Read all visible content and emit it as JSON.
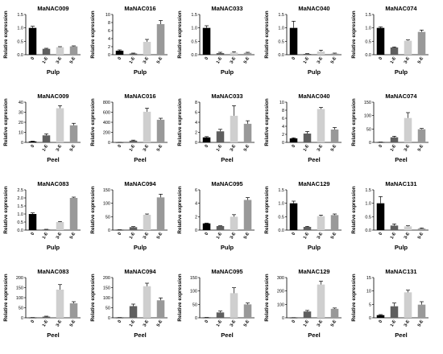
{
  "chart_data": [
    {
      "type": "bar",
      "title": "MaNAC009",
      "xlabel": "Pulp",
      "ylabel": "Relative expression",
      "categories": [
        "0",
        "1-E",
        "3-E",
        "5-E"
      ],
      "values": [
        1.0,
        0.22,
        0.28,
        0.31
      ],
      "errors": [
        0.06,
        0.02,
        0.02,
        0.02
      ],
      "ylim": [
        0,
        1.5
      ],
      "yticks": [
        "0.0",
        "0.5",
        "1.0",
        "1.5"
      ],
      "colors": [
        "#000000",
        "#5f5f5f",
        "#cfcfcf",
        "#999999"
      ]
    },
    {
      "type": "bar",
      "title": "MaNAC016",
      "xlabel": "Pulp",
      "ylabel": "Relative expression",
      "categories": [
        "0",
        "1-E",
        "3-E",
        "5-E"
      ],
      "values": [
        1.0,
        0.3,
        3.2,
        7.6
      ],
      "errors": [
        0.2,
        0.1,
        0.6,
        0.9
      ],
      "ylim": [
        0,
        10
      ],
      "yticks": [
        "0",
        "2",
        "4",
        "6",
        "8",
        "10"
      ],
      "colors": [
        "#000000",
        "#5f5f5f",
        "#cfcfcf",
        "#999999"
      ]
    },
    {
      "type": "bar",
      "title": "MaNAC033",
      "xlabel": "Pulp",
      "ylabel": "Relative expression",
      "categories": [
        "0",
        "1-E",
        "3-E",
        "5-E"
      ],
      "values": [
        1.0,
        0.06,
        0.08,
        0.07
      ],
      "errors": [
        0.08,
        0.03,
        0.03,
        0.02
      ],
      "ylim": [
        0,
        1.5
      ],
      "yticks": [
        "0.0",
        "0.5",
        "1.0",
        "1.5"
      ],
      "colors": [
        "#000000",
        "#5f5f5f",
        "#cfcfcf",
        "#999999"
      ]
    },
    {
      "type": "bar",
      "title": "MaNAC040",
      "xlabel": "Pulp",
      "ylabel": "Relative expression",
      "categories": [
        "0",
        "1-E",
        "3-E",
        "5-E"
      ],
      "values": [
        1.0,
        0.03,
        0.12,
        0.04
      ],
      "errors": [
        0.25,
        0.01,
        0.05,
        0.02
      ],
      "ylim": [
        0,
        1.5
      ],
      "yticks": [
        "0.0",
        "0.5",
        "1.0",
        "1.5"
      ],
      "colors": [
        "#000000",
        "#5f5f5f",
        "#cfcfcf",
        "#999999"
      ]
    },
    {
      "type": "bar",
      "title": "MaNAC074",
      "xlabel": "Pulp",
      "ylabel": "Relative expression",
      "categories": [
        "0",
        "1-E",
        "3-E",
        "5-E"
      ],
      "values": [
        1.0,
        0.27,
        0.52,
        0.85
      ],
      "errors": [
        0.04,
        0.02,
        0.03,
        0.07
      ],
      "ylim": [
        0,
        1.5
      ],
      "yticks": [
        "0.0",
        "0.5",
        "1.0",
        "1.5"
      ],
      "colors": [
        "#000000",
        "#5f5f5f",
        "#cfcfcf",
        "#999999"
      ]
    },
    {
      "type": "bar",
      "title": "MaNAC009",
      "xlabel": "Peel",
      "ylabel": "Relative expression",
      "categories": [
        "0",
        "1-E",
        "3-E",
        "5-E"
      ],
      "values": [
        1.0,
        7.0,
        34.0,
        17.0
      ],
      "errors": [
        0.3,
        1.5,
        2.5,
        2.0
      ],
      "ylim": [
        0,
        40
      ],
      "yticks": [
        "0",
        "10",
        "20",
        "30",
        "40"
      ],
      "colors": [
        "#000000",
        "#5f5f5f",
        "#cfcfcf",
        "#999999"
      ]
    },
    {
      "type": "bar",
      "title": "MaNAC016",
      "xlabel": "Peel",
      "ylabel": "Relative expression",
      "categories": [
        "0",
        "1-E",
        "3-E",
        "5-E"
      ],
      "values": [
        1.0,
        35.0,
        610.0,
        450.0
      ],
      "errors": [
        0.3,
        10,
        70,
        30
      ],
      "ylim": [
        0,
        800
      ],
      "yticks": [
        "0",
        "200",
        "400",
        "600",
        "800"
      ],
      "colors": [
        "#000000",
        "#5f5f5f",
        "#cfcfcf",
        "#999999"
      ]
    },
    {
      "type": "bar",
      "title": "MaNAC033",
      "xlabel": "Peel",
      "ylabel": "Relative expression",
      "categories": [
        "0",
        "1-E",
        "3-E",
        "5-E"
      ],
      "values": [
        1.0,
        2.2,
        5.3,
        3.7
      ],
      "errors": [
        0.15,
        0.4,
        2.0,
        0.6
      ],
      "ylim": [
        0,
        8
      ],
      "yticks": [
        "0",
        "2",
        "4",
        "6",
        "8"
      ],
      "colors": [
        "#000000",
        "#5f5f5f",
        "#cfcfcf",
        "#999999"
      ]
    },
    {
      "type": "bar",
      "title": "MaNAC040",
      "xlabel": "Peel",
      "ylabel": "Relative expression",
      "categories": [
        "0",
        "1-E",
        "3-E",
        "5-E"
      ],
      "values": [
        1.0,
        2.2,
        8.3,
        3.2
      ],
      "errors": [
        0.15,
        0.5,
        0.4,
        0.5
      ],
      "ylim": [
        0,
        10
      ],
      "yticks": [
        "0",
        "2",
        "4",
        "6",
        "8",
        "10"
      ],
      "colors": [
        "#000000",
        "#5f5f5f",
        "#cfcfcf",
        "#999999"
      ]
    },
    {
      "type": "bar",
      "title": "MaNAC074",
      "xlabel": "Peel",
      "ylabel": "Relative expression",
      "categories": [
        "0",
        "1-E",
        "3-E",
        "5-E"
      ],
      "values": [
        1.0,
        19.0,
        91.0,
        49.0
      ],
      "errors": [
        0.3,
        4,
        20,
        3
      ],
      "ylim": [
        0,
        150
      ],
      "yticks": [
        "0",
        "50",
        "100",
        "150"
      ],
      "colors": [
        "#000000",
        "#5f5f5f",
        "#cfcfcf",
        "#999999"
      ]
    },
    {
      "type": "bar",
      "title": "MaNAC083",
      "xlabel": "Pulp",
      "ylabel": "Relative expression",
      "categories": [
        "0",
        "1-E",
        "3-E",
        "5-E"
      ],
      "values": [
        1.0,
        0.04,
        0.5,
        2.0
      ],
      "errors": [
        0.07,
        0.01,
        0.03,
        0.05
      ],
      "ylim": [
        0,
        2.5
      ],
      "yticks": [
        "0.0",
        "0.5",
        "1.0",
        "1.5",
        "2.0",
        "2.5"
      ],
      "colors": [
        "#000000",
        "#5f5f5f",
        "#cfcfcf",
        "#999999"
      ]
    },
    {
      "type": "bar",
      "title": "MaNAC094",
      "xlabel": "Pulp",
      "ylabel": "Relative expression",
      "categories": [
        "0",
        "1-E",
        "3-E",
        "5-E"
      ],
      "values": [
        1.0,
        11.0,
        57.0,
        122.0
      ],
      "errors": [
        0.3,
        2,
        3,
        12
      ],
      "ylim": [
        0,
        150
      ],
      "yticks": [
        "0",
        "50",
        "100",
        "150"
      ],
      "colors": [
        "#000000",
        "#5f5f5f",
        "#cfcfcf",
        "#999999"
      ]
    },
    {
      "type": "bar",
      "title": "MaNAC095",
      "xlabel": "Pulp",
      "ylabel": "Relative expression",
      "categories": [
        "0",
        "1-E",
        "3-E",
        "5-E"
      ],
      "values": [
        1.0,
        0.6,
        2.0,
        4.5
      ],
      "errors": [
        0.05,
        0.05,
        0.3,
        0.35
      ],
      "ylim": [
        0,
        6
      ],
      "yticks": [
        "0",
        "2",
        "4",
        "6"
      ],
      "colors": [
        "#000000",
        "#5f5f5f",
        "#cfcfcf",
        "#999999"
      ]
    },
    {
      "type": "bar",
      "title": "MaNAC129",
      "xlabel": "Pulp",
      "ylabel": "Relative expression",
      "categories": [
        "0",
        "1-E",
        "3-E",
        "5-E"
      ],
      "values": [
        1.0,
        0.12,
        0.52,
        0.56
      ],
      "errors": [
        0.08,
        0.02,
        0.04,
        0.04
      ],
      "ylim": [
        0,
        1.5
      ],
      "yticks": [
        "0.0",
        "0.5",
        "1.0",
        "1.5"
      ],
      "colors": [
        "#000000",
        "#5f5f5f",
        "#cfcfcf",
        "#999999"
      ]
    },
    {
      "type": "bar",
      "title": "MaNAC131",
      "xlabel": "Pulp",
      "ylabel": "Relative expression",
      "categories": [
        "0",
        "1-E",
        "3-E",
        "5-E"
      ],
      "values": [
        1.0,
        0.17,
        0.14,
        0.06
      ],
      "errors": [
        0.25,
        0.06,
        0.02,
        0.02
      ],
      "ylim": [
        0,
        1.5
      ],
      "yticks": [
        "0.0",
        "0.5",
        "1.0",
        "1.5"
      ],
      "colors": [
        "#000000",
        "#5f5f5f",
        "#cfcfcf",
        "#999999"
      ]
    },
    {
      "type": "bar",
      "title": "MaNAC083",
      "xlabel": "Peel",
      "ylabel": "Relative expression",
      "categories": [
        "0",
        "1-E",
        "3-E",
        "5-E"
      ],
      "values": [
        1.0,
        6.0,
        140.0,
        72.0
      ],
      "errors": [
        0.3,
        2,
        25,
        8
      ],
      "ylim": [
        0,
        200
      ],
      "yticks": [
        "0",
        "50",
        "100",
        "150",
        "200"
      ],
      "colors": [
        "#000000",
        "#5f5f5f",
        "#cfcfcf",
        "#999999"
      ]
    },
    {
      "type": "bar",
      "title": "MaNAC094",
      "xlabel": "Peel",
      "ylabel": "Relative expression",
      "categories": [
        "0",
        "1-E",
        "3-E",
        "5-E"
      ],
      "values": [
        1.0,
        58.0,
        157.0,
        87.0
      ],
      "errors": [
        0.3,
        10,
        15,
        12
      ],
      "ylim": [
        0,
        200
      ],
      "yticks": [
        "0",
        "50",
        "100",
        "150",
        "200"
      ],
      "colors": [
        "#000000",
        "#5f5f5f",
        "#cfcfcf",
        "#999999"
      ]
    },
    {
      "type": "bar",
      "title": "MaNAC095",
      "xlabel": "Peel",
      "ylabel": "Relative expression",
      "categories": [
        "0",
        "1-E",
        "3-E",
        "5-E"
      ],
      "values": [
        1.0,
        20.0,
        92.0,
        50.0
      ],
      "errors": [
        0.3,
        5,
        20,
        5
      ],
      "ylim": [
        0,
        150
      ],
      "yticks": [
        "0",
        "50",
        "100",
        "150"
      ],
      "colors": [
        "#000000",
        "#5f5f5f",
        "#cfcfcf",
        "#999999"
      ]
    },
    {
      "type": "bar",
      "title": "MaNAC129",
      "xlabel": "Peel",
      "ylabel": "Relative expression",
      "categories": [
        "0",
        "1-E",
        "3-E",
        "5-E"
      ],
      "values": [
        1.0,
        47.0,
        248.0,
        67.0
      ],
      "errors": [
        0.3,
        8,
        25,
        6
      ],
      "ylim": [
        0,
        300
      ],
      "yticks": [
        "0",
        "100",
        "200",
        "300"
      ],
      "colors": [
        "#000000",
        "#5f5f5f",
        "#cfcfcf",
        "#999999"
      ]
    },
    {
      "type": "bar",
      "title": "MaNAC131",
      "xlabel": "Peel",
      "ylabel": "Relative expression",
      "categories": [
        "0",
        "1-E",
        "3-E",
        "5-E"
      ],
      "values": [
        1.0,
        4.3,
        9.5,
        4.9
      ],
      "errors": [
        0.2,
        1.2,
        0.8,
        1.1
      ],
      "ylim": [
        0,
        15
      ],
      "yticks": [
        "0",
        "5",
        "10",
        "15"
      ],
      "colors": [
        "#000000",
        "#5f5f5f",
        "#cfcfcf",
        "#999999"
      ]
    }
  ]
}
